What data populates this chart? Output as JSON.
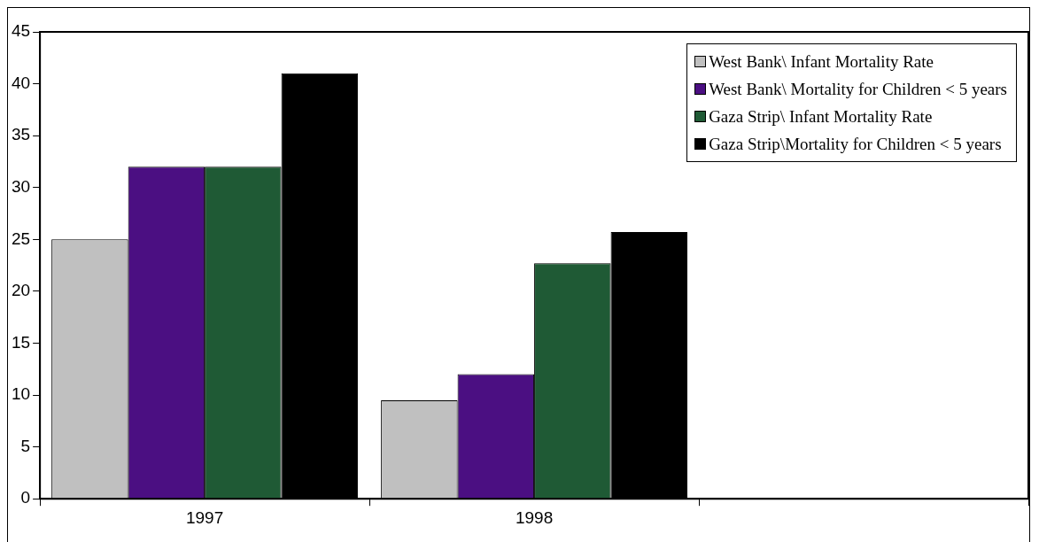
{
  "chart_data": {
    "type": "bar",
    "categories": [
      "1997",
      "1998",
      null
    ],
    "series": [
      {
        "name": "West Bank\\ Infant Mortality Rate",
        "color": "#c0c0c0",
        "values": [
          25,
          9.5,
          null
        ]
      },
      {
        "name": "West Bank\\ Mortality for Children < 5 years",
        "color": "#4b0f82",
        "values": [
          32,
          12,
          null
        ]
      },
      {
        "name": "Gaza Strip\\ Infant Mortality Rate",
        "color": "#1f5a35",
        "values": [
          32,
          22.7,
          null
        ]
      },
      {
        "name": "Gaza Strip\\Mortality for Children < 5 years",
        "color": "#000000",
        "values": [
          41,
          25.7,
          null
        ]
      }
    ],
    "ylim": [
      0,
      45
    ],
    "yticks": [
      0,
      5,
      10,
      15,
      20,
      25,
      30,
      35,
      40,
      45
    ],
    "grid": false,
    "legend": "top right"
  }
}
